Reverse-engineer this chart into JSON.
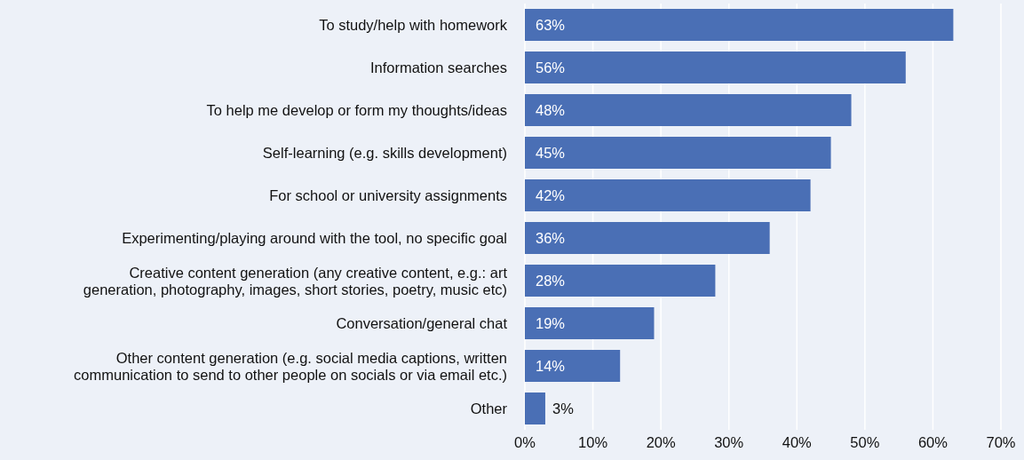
{
  "chart_data": {
    "type": "bar",
    "orientation": "horizontal",
    "categories": [
      "To study/help with homework",
      "Information searches",
      "To help me develop or form my thoughts/ideas",
      "Self-learning (e.g. skills development)",
      "For school or university assignments",
      "Experimenting/playing around with the tool, no specific goal",
      "Creative content generation (any creative content, e.g.: art generation, photography, images, short stories, poetry, music etc)",
      "Conversation/general chat",
      "Other content generation (e.g. social media captions, written communication to send to other people on socials or via email etc.)",
      "Other"
    ],
    "values": [
      63,
      56,
      48,
      45,
      42,
      36,
      28,
      19,
      14,
      3
    ],
    "color": "#4a6fb5",
    "xlim": [
      0,
      70
    ],
    "xticks": [
      {
        "value": 0,
        "label": "0%"
      },
      {
        "value": 10,
        "label": "10%"
      },
      {
        "value": 20,
        "label": "20%"
      },
      {
        "value": 30,
        "label": "30%"
      },
      {
        "value": 40,
        "label": "40%"
      },
      {
        "value": 50,
        "label": "50%"
      },
      {
        "value": 60,
        "label": "60%"
      },
      {
        "value": 70,
        "label": "70%"
      }
    ],
    "value_labels": [
      "63%",
      "56%",
      "48%",
      "45%",
      "42%",
      "36%",
      "28%",
      "19%",
      "14%",
      "3%"
    ],
    "grid": "x",
    "legend": false
  }
}
